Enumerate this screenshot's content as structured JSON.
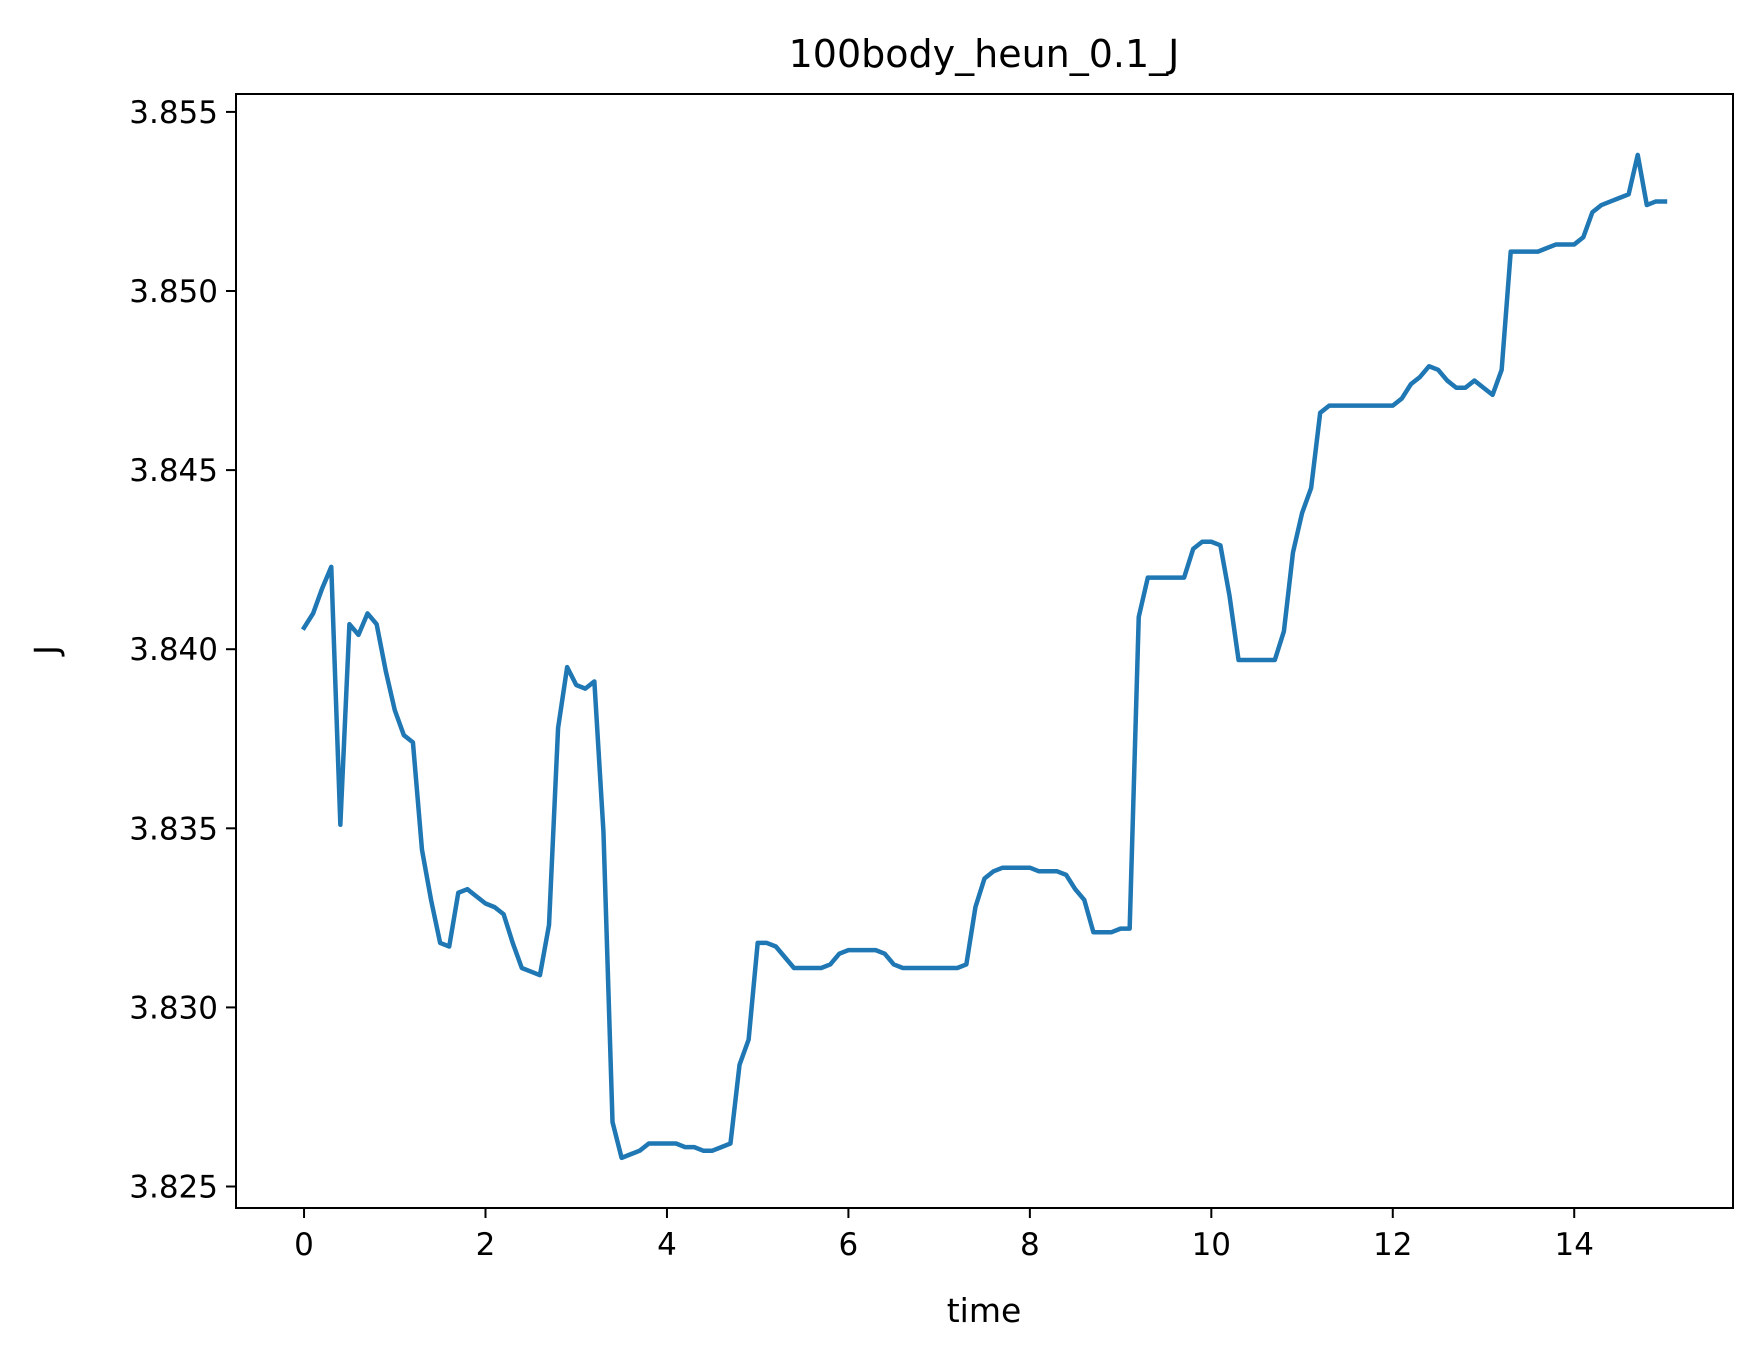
{
  "chart_data": {
    "type": "line",
    "title": "100body_heun_0.1_J",
    "xlabel": "time",
    "ylabel": "J",
    "xlim": [
      -0.75,
      15.75
    ],
    "ylim": [
      3.8244,
      3.8555
    ],
    "xticks": [
      0,
      2,
      4,
      6,
      8,
      10,
      12,
      14
    ],
    "xtick_labels": [
      "0",
      "2",
      "4",
      "6",
      "8",
      "10",
      "12",
      "14"
    ],
    "yticks": [
      3.825,
      3.83,
      3.835,
      3.84,
      3.845,
      3.85,
      3.855
    ],
    "ytick_labels": [
      "3.825",
      "3.830",
      "3.835",
      "3.840",
      "3.845",
      "3.850",
      "3.855"
    ],
    "grid": false,
    "legend": "none",
    "series_color": "#1f77b4",
    "series": [
      {
        "x": [
          0.0,
          0.1,
          0.2,
          0.3,
          0.4,
          0.5,
          0.6,
          0.7,
          0.8,
          0.9,
          1.0,
          1.1,
          1.2,
          1.3,
          1.4,
          1.5,
          1.6,
          1.7,
          1.8,
          1.9,
          2.0,
          2.1,
          2.2,
          2.3,
          2.4,
          2.5,
          2.6,
          2.7,
          2.8,
          2.9,
          3.0,
          3.1,
          3.2,
          3.3,
          3.4,
          3.5,
          3.6,
          3.7,
          3.8,
          3.9,
          4.0,
          4.1,
          4.2,
          4.3,
          4.4,
          4.5,
          4.6,
          4.7,
          4.8,
          4.9,
          5.0,
          5.1,
          5.2,
          5.3,
          5.4,
          5.5,
          5.6,
          5.7,
          5.8,
          5.9,
          6.0,
          6.1,
          6.2,
          6.3,
          6.4,
          6.5,
          6.6,
          6.7,
          6.8,
          6.9,
          7.0,
          7.1,
          7.2,
          7.3,
          7.4,
          7.5,
          7.6,
          7.7,
          7.8,
          7.9,
          8.0,
          8.1,
          8.2,
          8.3,
          8.4,
          8.5,
          8.6,
          8.7,
          8.8,
          8.9,
          9.0,
          9.1,
          9.2,
          9.3,
          9.4,
          9.5,
          9.6,
          9.7,
          9.8,
          9.9,
          10.0,
          10.1,
          10.2,
          10.3,
          10.4,
          10.5,
          10.6,
          10.7,
          10.8,
          10.9,
          11.0,
          11.1,
          11.2,
          11.3,
          11.4,
          11.5,
          11.6,
          11.7,
          11.8,
          11.9,
          12.0,
          12.1,
          12.2,
          12.3,
          12.4,
          12.5,
          12.6,
          12.7,
          12.8,
          12.9,
          13.0,
          13.1,
          13.2,
          13.3,
          13.4,
          13.5,
          13.6,
          13.7,
          13.8,
          13.9,
          14.0,
          14.1,
          14.2,
          14.3,
          14.4,
          14.5,
          14.6,
          14.7,
          14.8,
          14.9,
          15.0
        ],
        "values": [
          3.8406,
          3.841,
          3.8417,
          3.8423,
          3.8351,
          3.8407,
          3.8404,
          3.841,
          3.8407,
          3.8394,
          3.8383,
          3.8376,
          3.8374,
          3.8344,
          3.833,
          3.8318,
          3.8317,
          3.8332,
          3.8333,
          3.8331,
          3.8329,
          3.8328,
          3.8326,
          3.8318,
          3.8311,
          3.831,
          3.8309,
          3.8323,
          3.8378,
          3.8395,
          3.839,
          3.8389,
          3.8391,
          3.8349,
          3.8268,
          3.8258,
          3.8259,
          3.826,
          3.8262,
          3.8262,
          3.8262,
          3.8262,
          3.8261,
          3.8261,
          3.826,
          3.826,
          3.8261,
          3.8262,
          3.8284,
          3.8291,
          3.8318,
          3.8318,
          3.8317,
          3.8314,
          3.8311,
          3.8311,
          3.8311,
          3.8311,
          3.8312,
          3.8315,
          3.8316,
          3.8316,
          3.8316,
          3.8316,
          3.8315,
          3.8312,
          3.8311,
          3.8311,
          3.8311,
          3.8311,
          3.8311,
          3.8311,
          3.8311,
          3.8312,
          3.8328,
          3.8336,
          3.8338,
          3.8339,
          3.8339,
          3.8339,
          3.8339,
          3.8338,
          3.8338,
          3.8338,
          3.8337,
          3.8333,
          3.833,
          3.8321,
          3.8321,
          3.8321,
          3.8322,
          3.8322,
          3.8409,
          3.842,
          3.842,
          3.842,
          3.842,
          3.842,
          3.8428,
          3.843,
          3.843,
          3.8429,
          3.8415,
          3.8397,
          3.8397,
          3.8397,
          3.8397,
          3.8397,
          3.8405,
          3.8427,
          3.8438,
          3.8445,
          3.8466,
          3.8468,
          3.8468,
          3.8468,
          3.8468,
          3.8468,
          3.8468,
          3.8468,
          3.8468,
          3.847,
          3.8474,
          3.8476,
          3.8479,
          3.8478,
          3.8475,
          3.8473,
          3.8473,
          3.8475,
          3.8473,
          3.8471,
          3.8478,
          3.8511,
          3.8511,
          3.8511,
          3.8511,
          3.8512,
          3.8513,
          3.8513,
          3.8513,
          3.8515,
          3.8522,
          3.8524,
          3.8525,
          3.8526,
          3.8527,
          3.8538,
          3.8524,
          3.8525,
          3.8525
        ]
      }
    ]
  }
}
